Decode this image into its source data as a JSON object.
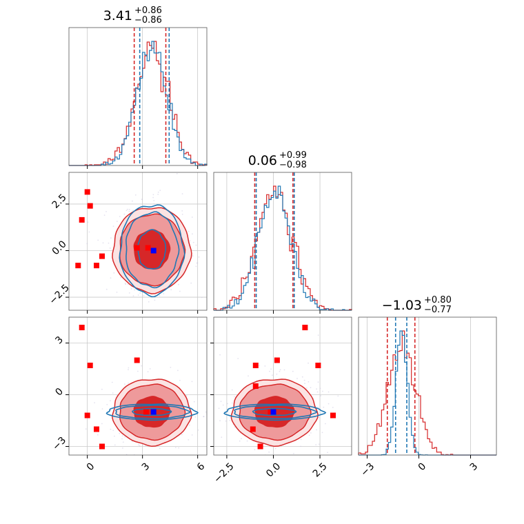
{
  "chart_data": {
    "type": "corner",
    "params": [
      "x0",
      "x1",
      "x2"
    ],
    "colors": {
      "red": "#d62728",
      "blue": "#1f77b4",
      "grid": "#c8c8c8",
      "fill_dark": "#d62728",
      "fill_light": "#ee9a9b",
      "marker_red": "#ff0000",
      "marker_blue": "#0000ff"
    },
    "ranges": [
      [
        -1,
        6.5
      ],
      [
        -3.2,
        4.2
      ],
      [
        -3.5,
        4.5
      ]
    ],
    "ticks": [
      {
        "values": [
          0,
          3,
          6
        ],
        "labels": [
          "0",
          "3",
          "6"
        ]
      },
      {
        "values": [
          -2.5,
          0.0,
          2.5
        ],
        "labels": [
          "−2.5",
          "0.0",
          "2.5"
        ]
      },
      {
        "values": [
          -3,
          0,
          3
        ],
        "labels": [
          "−3",
          "0",
          "3"
        ]
      }
    ],
    "titles": [
      {
        "median": "3.41",
        "plus": "+0.86",
        "minus": "−0.86"
      },
      {
        "median": "0.06",
        "plus": "+0.99",
        "minus": "−0.98"
      },
      {
        "median": "−1.03",
        "plus": "+0.80",
        "minus": "−0.77"
      }
    ],
    "marginals": [
      {
        "mean": 3.5,
        "sigma": 0.88,
        "q_red": [
          2.55,
          4.27
        ],
        "q_blue": [
          2.85,
          4.45
        ]
      },
      {
        "mean": 0.05,
        "sigma": 0.95,
        "q_red": [
          -1.0,
          1.05
        ],
        "q_blue": [
          -0.92,
          1.12
        ]
      },
      {
        "mean": -1.0,
        "sigma_red": 0.8,
        "sigma_blue": 0.32,
        "q_red": [
          -1.83,
          -0.23
        ],
        "q_blue": [
          -1.35,
          -0.7
        ]
      }
    ],
    "pairs": [
      {
        "row": 1,
        "col": 0,
        "center": [
          3.5,
          0.05
        ],
        "sigma": [
          0.88,
          0.95
        ],
        "blue_center": [
          3.5,
          0.05
        ],
        "blue_sigma": [
          0.75,
          1.05
        ],
        "red_points": [
          [
            0.0,
            3.15
          ],
          [
            0.15,
            2.4
          ],
          [
            -0.3,
            1.65
          ],
          [
            -0.5,
            -0.8
          ],
          [
            0.5,
            -0.8
          ],
          [
            0.8,
            -0.3
          ],
          [
            2.7,
            0.15
          ],
          [
            3.3,
            0.15
          ]
        ],
        "blue_point": [
          3.6,
          0.0
        ]
      },
      {
        "row": 2,
        "col": 0,
        "center": [
          3.5,
          -1.0
        ],
        "sigma": [
          0.88,
          0.8
        ],
        "blue_center": [
          3.5,
          -1.0
        ],
        "blue_sigma": [
          1.05,
          0.2
        ],
        "red_points": [
          [
            -0.3,
            3.9
          ],
          [
            0.15,
            1.7
          ],
          [
            0.0,
            -1.2
          ],
          [
            0.5,
            -2.0
          ],
          [
            0.8,
            -3.0
          ],
          [
            2.7,
            2.0
          ],
          [
            3.2,
            -1.0
          ]
        ],
        "blue_point": [
          3.6,
          -1.0
        ]
      },
      {
        "row": 2,
        "col": 1,
        "center": [
          0.05,
          -1.0
        ],
        "sigma": [
          0.95,
          0.8
        ],
        "blue_center": [
          0.05,
          -1.0
        ],
        "blue_sigma": [
          1.15,
          0.2
        ],
        "red_points": [
          [
            -0.95,
            1.7
          ],
          [
            0.2,
            2.0
          ],
          [
            1.7,
            3.9
          ],
          [
            2.4,
            1.7
          ],
          [
            3.2,
            -1.2
          ],
          [
            -0.95,
            0.5
          ],
          [
            -1.1,
            -2.0
          ],
          [
            -0.7,
            -3.0
          ],
          [
            -0.15,
            -1.0
          ]
        ],
        "blue_point": [
          0.0,
          -1.0
        ]
      }
    ]
  }
}
